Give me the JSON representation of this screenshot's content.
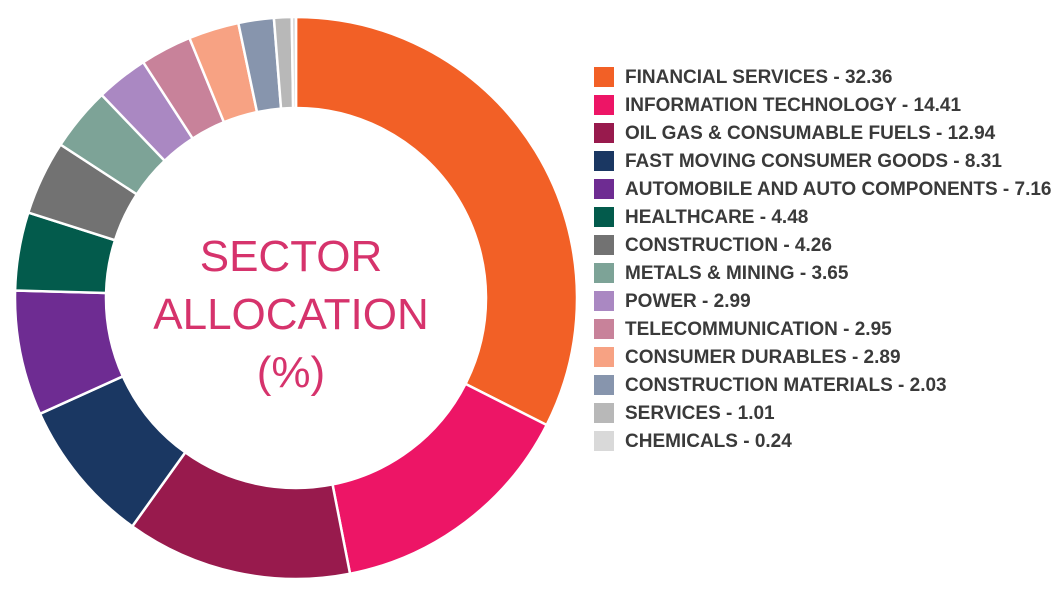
{
  "chart_data": {
    "type": "pie",
    "title_lines": [
      "SECTOR",
      "ALLOCATION",
      "(%)"
    ],
    "legend_position": "right",
    "slices": [
      {
        "label": "FINANCIAL SERVICES",
        "value": 32.36,
        "color": "#f26026"
      },
      {
        "label": "INFORMATION TECHNOLOGY",
        "value": 14.41,
        "color": "#ed1566"
      },
      {
        "label": "OIL GAS & CONSUMABLE FUELS",
        "value": 12.94,
        "color": "#981a4d"
      },
      {
        "label": "FAST MOVING CONSUMER GOODS",
        "value": 8.31,
        "color": "#1a3762"
      },
      {
        "label": "AUTOMOBILE AND AUTO COMPONENTS",
        "value": 7.16,
        "color": "#6e2c92"
      },
      {
        "label": "HEALTHCARE",
        "value": 4.48,
        "color": "#035b4c"
      },
      {
        "label": "CONSTRUCTION",
        "value": 4.26,
        "color": "#727272"
      },
      {
        "label": "METALS & MINING",
        "value": 3.65,
        "color": "#7da397"
      },
      {
        "label": "POWER",
        "value": 2.99,
        "color": "#aa88c2"
      },
      {
        "label": "TELECOMMUNICATION",
        "value": 2.95,
        "color": "#c8829a"
      },
      {
        "label": "CONSUMER DURABLES",
        "value": 2.89,
        "color": "#f7a283"
      },
      {
        "label": "CONSTRUCTION MATERIALS",
        "value": 2.03,
        "color": "#8795ad"
      },
      {
        "label": "SERVICES",
        "value": 1.01,
        "color": "#b8b8b8"
      },
      {
        "label": "CHEMICALS",
        "value": 0.24,
        "color": "#d9d9d9"
      }
    ]
  }
}
